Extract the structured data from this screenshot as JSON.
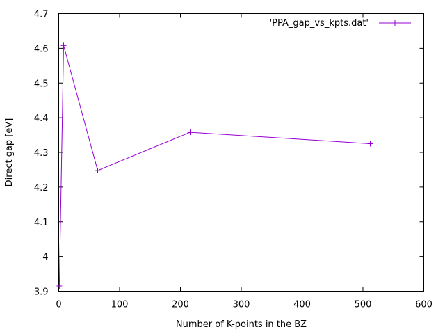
{
  "chart_data": {
    "type": "line",
    "xlabel": "Number of K-points in the BZ",
    "ylabel": "Direct gap [eV]",
    "xlim": [
      0,
      600
    ],
    "ylim": [
      3.9,
      4.7
    ],
    "xticks": [
      0,
      100,
      200,
      300,
      400,
      500,
      600
    ],
    "xtick_labels": [
      "0",
      "100",
      "200",
      "300",
      "400",
      "500",
      "600"
    ],
    "yticks": [
      3.9,
      4.0,
      4.1,
      4.2,
      4.3,
      4.4,
      4.5,
      4.6,
      4.7
    ],
    "ytick_labels": [
      "3.9",
      "4",
      "4.1",
      "4.2",
      "4.3",
      "4.4",
      "4.5",
      "4.6",
      "4.7"
    ],
    "grid": false,
    "legend_position": "top-right",
    "series": [
      {
        "name": "'PPA_gap_vs_kpts.dat'",
        "color": "#9400d3",
        "marker": "plus",
        "x": [
          1,
          8,
          64,
          216,
          512
        ],
        "y": [
          3.915,
          4.608,
          4.248,
          4.358,
          4.325
        ]
      }
    ]
  }
}
